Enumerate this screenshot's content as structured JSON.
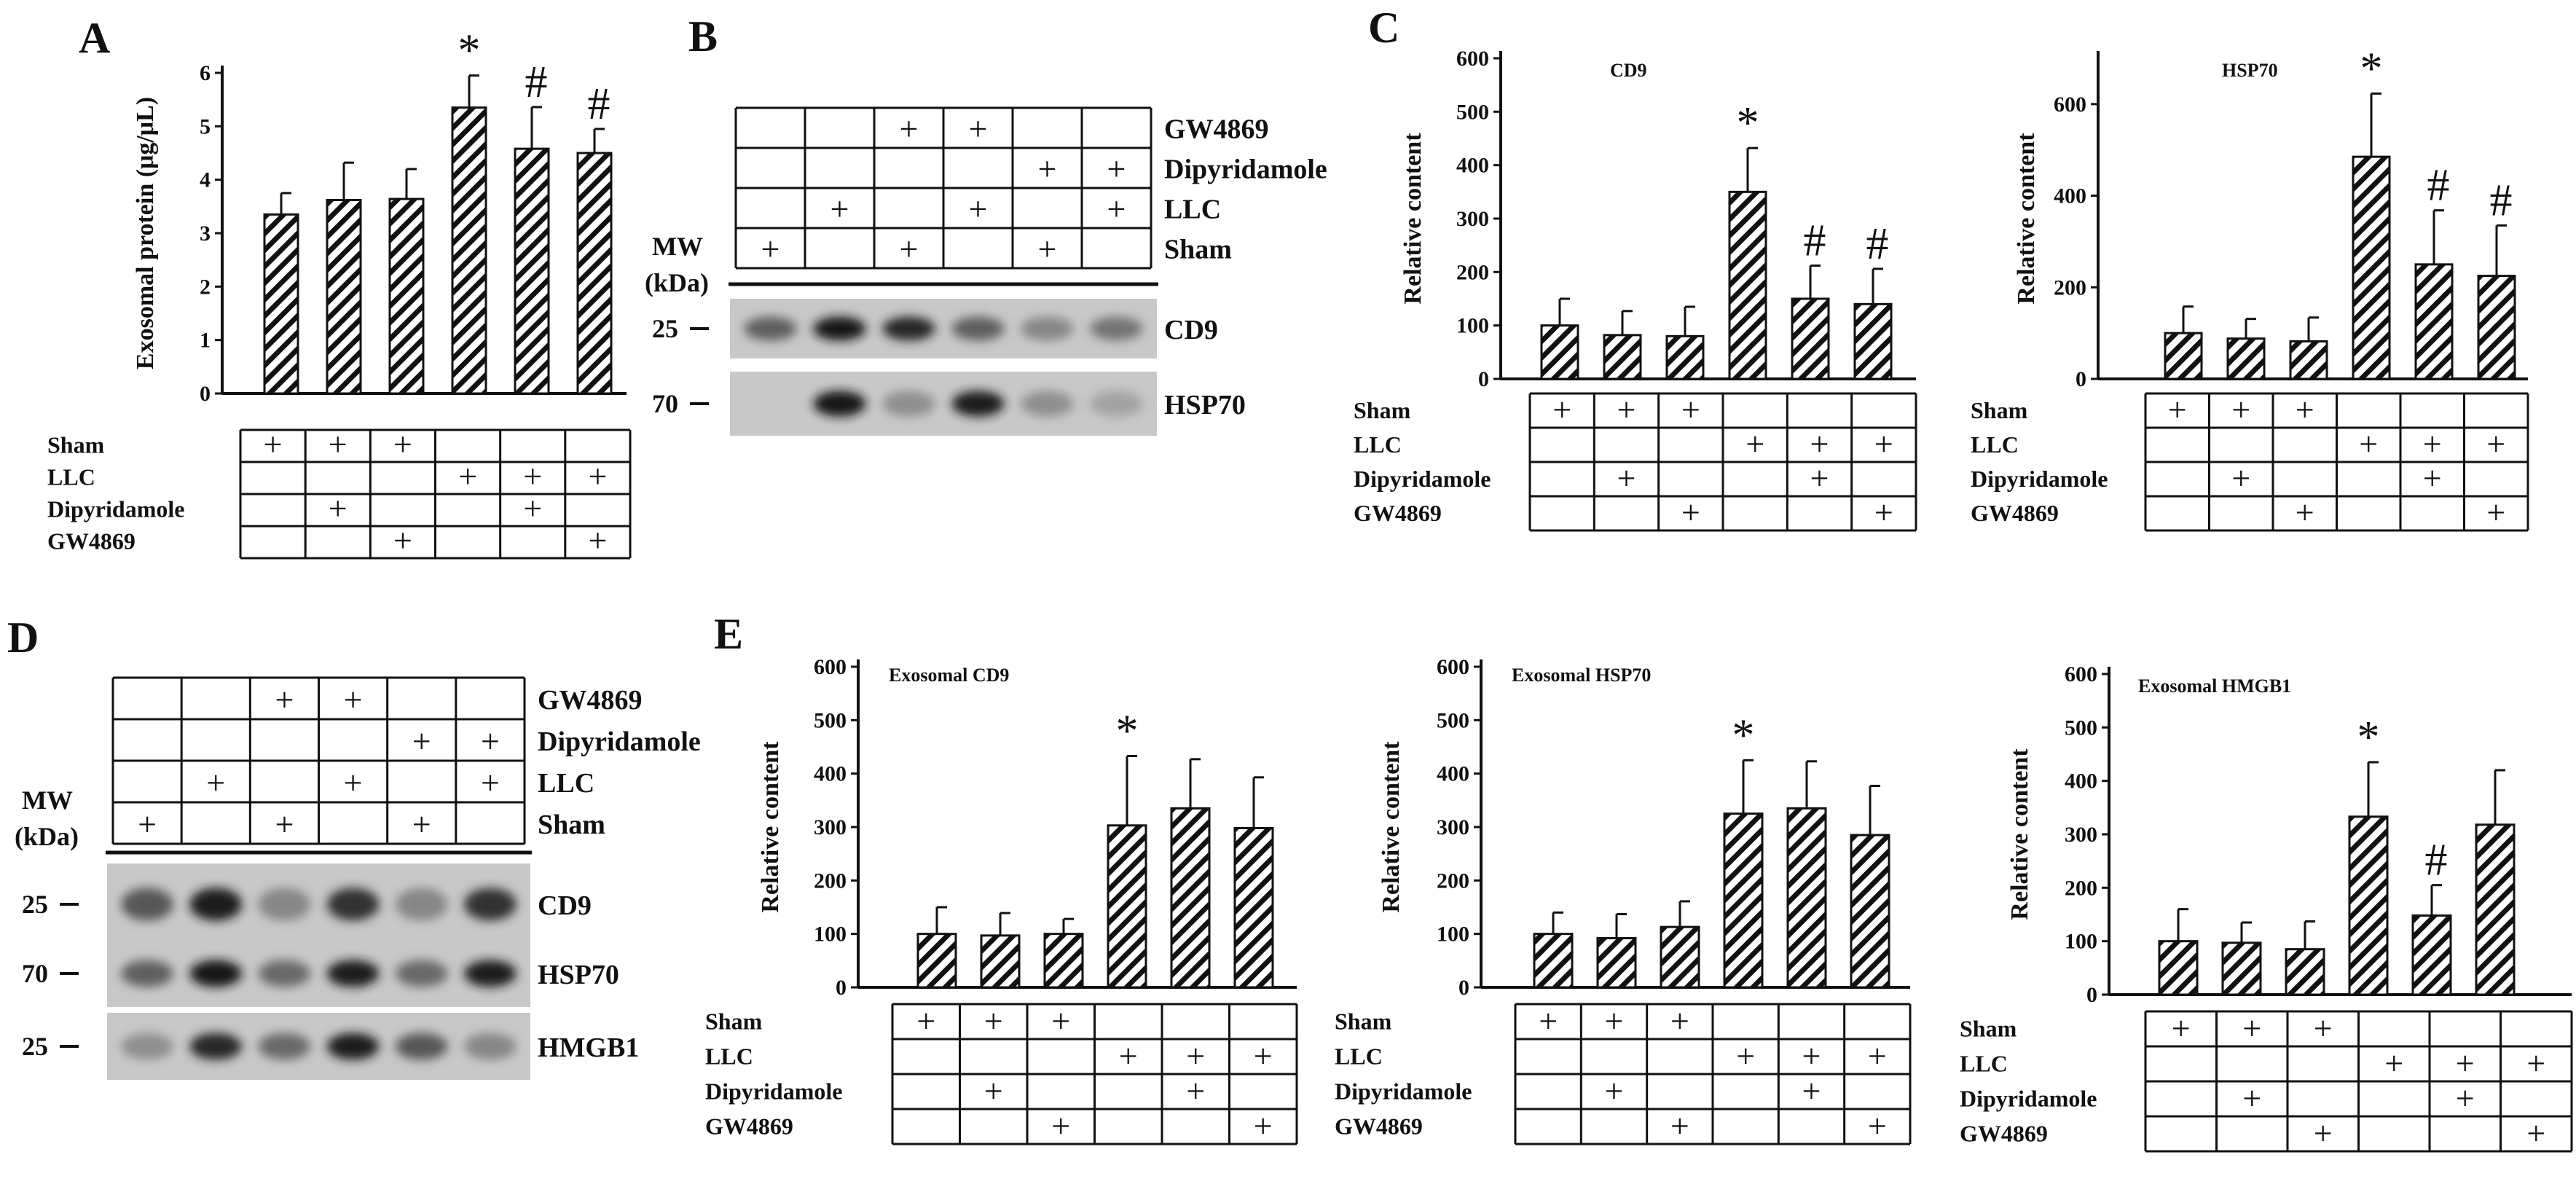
{
  "figure": {
    "background": "#ffffff",
    "ink": "#111111",
    "bar_fill": "hatched-diagonal"
  },
  "conditions": {
    "labels": [
      "Sham",
      "LLC",
      "Dipyridamole",
      "GW4869"
    ],
    "mark": "+",
    "chart_rows": [
      [
        true,
        true,
        true,
        false,
        false,
        false
      ],
      [
        false,
        false,
        false,
        true,
        true,
        true
      ],
      [
        false,
        true,
        false,
        false,
        true,
        false
      ],
      [
        false,
        false,
        true,
        false,
        false,
        true
      ]
    ],
    "blot_rows": [
      {
        "label": "GW4869",
        "marks": [
          false,
          false,
          true,
          true,
          false,
          false
        ]
      },
      {
        "label": "Dipyridamole",
        "marks": [
          false,
          false,
          false,
          false,
          true,
          true
        ]
      },
      {
        "label": "LLC",
        "marks": [
          false,
          true,
          false,
          true,
          false,
          true
        ]
      },
      {
        "label": "Sham",
        "marks": [
          true,
          false,
          true,
          false,
          true,
          false
        ]
      }
    ]
  },
  "blots": [
    {
      "panel": "B",
      "mw_header": [
        "MW",
        "(kDa)"
      ],
      "bands": [
        {
          "label": "CD9",
          "mw": "25",
          "intensity": [
            0.55,
            0.95,
            0.85,
            0.55,
            0.35,
            0.45
          ]
        },
        {
          "label": "HSP70",
          "mw": "70",
          "intensity": [
            0.0,
            0.95,
            0.3,
            0.9,
            0.3,
            0.2
          ]
        }
      ]
    },
    {
      "panel": "D",
      "mw_header": [
        "MW",
        "(kDa)"
      ],
      "bands": [
        {
          "label": "CD9",
          "mw": "25",
          "intensity": [
            0.6,
            0.9,
            0.35,
            0.8,
            0.35,
            0.8
          ]
        },
        {
          "label": "HSP70",
          "mw": "70",
          "intensity": [
            0.55,
            0.95,
            0.5,
            0.9,
            0.5,
            0.9
          ]
        },
        {
          "label": "HMGB1",
          "mw": "25",
          "intensity": [
            0.3,
            0.85,
            0.5,
            0.9,
            0.6,
            0.35
          ]
        }
      ]
    }
  ],
  "chart_data": [
    {
      "panel": "A",
      "type": "bar",
      "title": "",
      "ylabel": "Exosomal protein (μg/μL)",
      "ylim": [
        0,
        6
      ],
      "yticks": [
        0,
        1,
        2,
        3,
        4,
        5,
        6
      ],
      "values": [
        3.35,
        3.62,
        3.64,
        5.35,
        4.58,
        4.5
      ],
      "errors": [
        0.4,
        0.7,
        0.56,
        0.6,
        0.78,
        0.45
      ],
      "annotations": [
        "",
        "",
        "",
        "*",
        "#",
        "#"
      ]
    },
    {
      "panel": "C",
      "type": "bar",
      "title": "CD9",
      "ylabel": "Relative content",
      "ylim": [
        0,
        600
      ],
      "yticks": [
        0,
        100,
        200,
        300,
        400,
        500,
        600
      ],
      "values": [
        100,
        82,
        80,
        350,
        150,
        140
      ],
      "errors": [
        50,
        45,
        55,
        82,
        62,
        66
      ],
      "annotations": [
        "",
        "",
        "",
        "*",
        "#",
        "#"
      ]
    },
    {
      "panel": "C",
      "type": "bar",
      "title": "HSP70",
      "ylabel": "Relative content",
      "ylim": [
        0,
        700
      ],
      "yticks": [
        0,
        200,
        400,
        600
      ],
      "values": [
        100,
        88,
        82,
        485,
        250,
        225
      ],
      "errors": [
        58,
        43,
        52,
        138,
        118,
        110
      ],
      "annotations": [
        "",
        "",
        "",
        "*",
        "#",
        "#"
      ]
    },
    {
      "panel": "E",
      "type": "bar",
      "title": "Exosomal CD9",
      "ylabel": "Relative content",
      "ylim": [
        0,
        600
      ],
      "yticks": [
        0,
        100,
        200,
        300,
        400,
        500,
        600
      ],
      "values": [
        100,
        97,
        100,
        303,
        335,
        298
      ],
      "errors": [
        50,
        42,
        28,
        130,
        92,
        95
      ],
      "annotations": [
        "",
        "",
        "",
        "*",
        "",
        ""
      ]
    },
    {
      "panel": "E",
      "type": "bar",
      "title": "Exosomal HSP70",
      "ylabel": "Relative content",
      "ylim": [
        0,
        600
      ],
      "yticks": [
        0,
        100,
        200,
        300,
        400,
        500,
        600
      ],
      "values": [
        100,
        92,
        113,
        325,
        335,
        285
      ],
      "errors": [
        40,
        45,
        48,
        100,
        88,
        92
      ],
      "annotations": [
        "",
        "",
        "",
        "*",
        "",
        ""
      ]
    },
    {
      "panel": "E",
      "type": "bar",
      "title": "Exosomal HMGB1",
      "ylabel": "Relative content",
      "ylim": [
        0,
        600
      ],
      "yticks": [
        0,
        100,
        200,
        300,
        400,
        500,
        600
      ],
      "values": [
        100,
        97,
        85,
        333,
        148,
        318
      ],
      "errors": [
        60,
        38,
        52,
        102,
        57,
        102
      ],
      "annotations": [
        "",
        "",
        "",
        "*",
        "#",
        ""
      ]
    }
  ]
}
